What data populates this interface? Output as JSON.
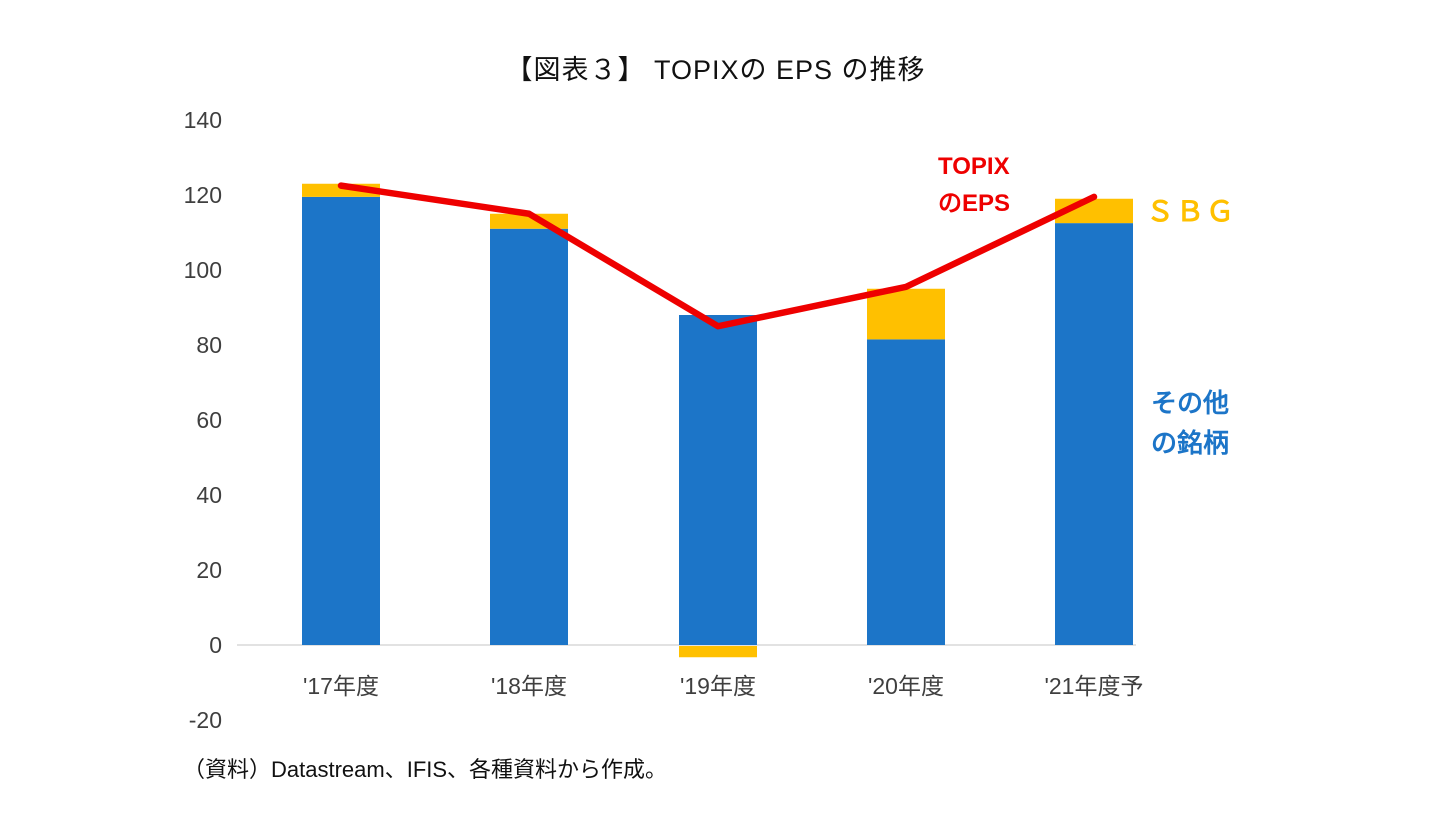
{
  "chart_data": {
    "type": "bar",
    "subtype": "stacked-bar-with-line",
    "title": "【図表３】 TOPIXの EPS の推移",
    "categories": [
      "'17年度",
      "'18年度",
      "'19年度",
      "'20年度",
      "'21年度予"
    ],
    "series": [
      {
        "name": "その他の銘柄",
        "type": "bar",
        "stack": 1,
        "color": "#1C75C8",
        "values": [
          119.5,
          111,
          88,
          81.5,
          112.5
        ]
      },
      {
        "name": "ＳＢＧ",
        "type": "bar",
        "stack": 1,
        "color": "#FFC000",
        "values": [
          3.5,
          4,
          -3,
          13.5,
          6.5
        ]
      }
    ],
    "line": {
      "name": "TOPIXのEPS",
      "color": "#EE0000",
      "values": [
        122.5,
        115,
        85,
        95.5,
        119.5
      ]
    },
    "xlabel": "",
    "ylabel": "",
    "ylim": [
      -20,
      140
    ],
    "yticks": [
      -20,
      0,
      20,
      40,
      60,
      80,
      100,
      120,
      140
    ],
    "grid": false,
    "legend_position": "inline-annotations",
    "axis_line_color": "#d9d9d9"
  },
  "annotations": {
    "line_label_line1": "TOPIX",
    "line_label_line2": "のEPS",
    "sbg_label": "ＳＢＧ",
    "other_label_line1": "その他",
    "other_label_line2": "の銘柄"
  },
  "source": "（資料）Datastream、IFIS、各種資料から作成。"
}
